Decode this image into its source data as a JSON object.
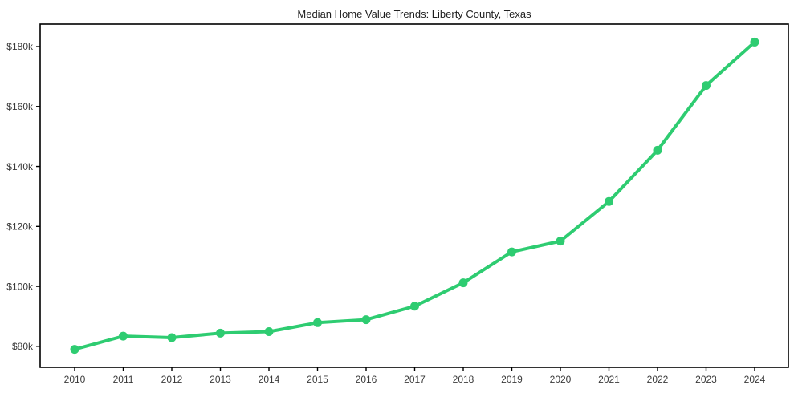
{
  "chart_data": {
    "type": "line",
    "title": "Median Home Value Trends: Liberty County, Texas",
    "xlabel": "",
    "ylabel": "",
    "x": [
      "2010",
      "2011",
      "2012",
      "2013",
      "2014",
      "2015",
      "2016",
      "2017",
      "2018",
      "2019",
      "2020",
      "2021",
      "2022",
      "2023",
      "2024"
    ],
    "series": [
      {
        "name": "Median Home Value",
        "values": [
          79000,
          83400,
          82900,
          84400,
          84900,
          87900,
          88900,
          93400,
          101200,
          111500,
          115100,
          128300,
          145400,
          167000,
          181500
        ],
        "color": "#2ecc71",
        "marker": "circle"
      }
    ],
    "y_axis": {
      "tick_values": [
        80000,
        100000,
        120000,
        140000,
        160000,
        180000
      ],
      "tick_labels": [
        "$80k",
        "$100k",
        "$120k",
        "$140k",
        "$160k",
        "$180k"
      ]
    },
    "ylim": [
      73000,
      187500
    ],
    "grid": false,
    "legend": "none",
    "plot_border": "box"
  }
}
